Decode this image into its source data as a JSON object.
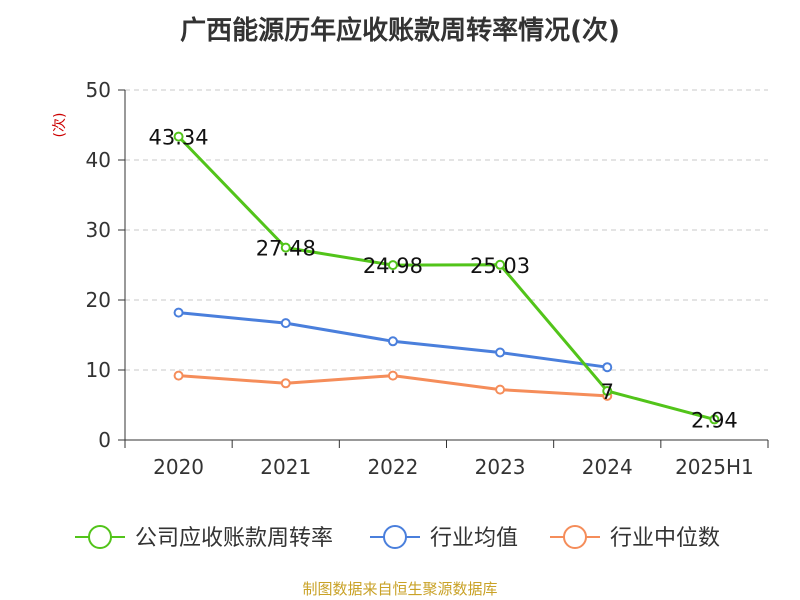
{
  "chart_data": {
    "type": "line",
    "title": "广西能源历年应收账款周转率情况(次)",
    "ylabel": "(次)",
    "xlabel": "",
    "ylim": [
      0,
      50
    ],
    "yticks": [
      0,
      10,
      20,
      30,
      40,
      50
    ],
    "categories": [
      "2020",
      "2021",
      "2022",
      "2023",
      "2024",
      "2025H1"
    ],
    "grid": true,
    "legend_position": "bottom",
    "series": [
      {
        "name": "公司应收账款周转率",
        "color": "#52c41a",
        "values": [
          43.34,
          27.48,
          24.98,
          25.03,
          7,
          2.94
        ],
        "labels": [
          "43.34",
          "27.48",
          "24.98",
          "25.03",
          "7",
          "2.94"
        ],
        "show_labels": true
      },
      {
        "name": "行业均值",
        "color": "#4a7fdc",
        "values": [
          18.2,
          16.7,
          14.1,
          12.5,
          10.4,
          null
        ],
        "show_labels": false
      },
      {
        "name": "行业中位数",
        "color": "#f58d5a",
        "values": [
          9.2,
          8.1,
          9.2,
          7.2,
          6.3,
          null
        ],
        "show_labels": false
      }
    ]
  },
  "source": "制图数据来自恒生聚源数据库"
}
